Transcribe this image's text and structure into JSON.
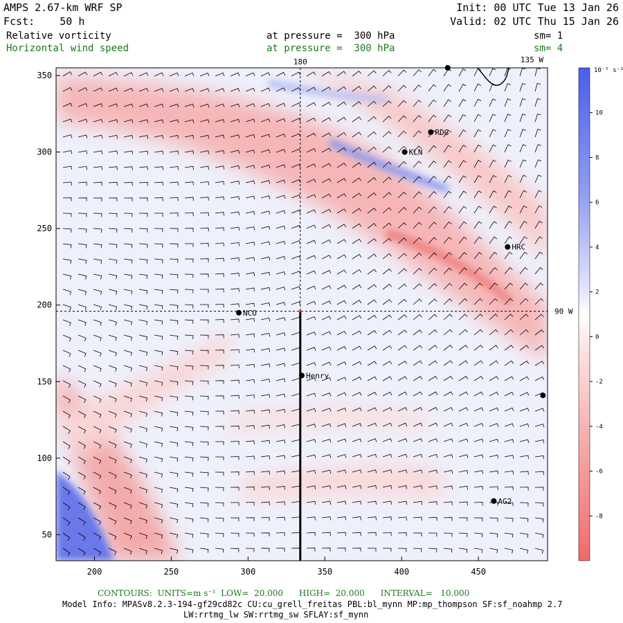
{
  "header": {
    "model": "AMPS 2.67-km WRF SP",
    "forecast": "Fcst:    50 h",
    "init": "Init: 00 UTC Tue 13 Jan 26",
    "valid": "Valid: 02 UTC Thu 15 Jan 26",
    "field1_name": "Relative vorticity",
    "field1_level": "at pressure =  300 hPa",
    "field1_sm": "sm= 1",
    "field2_name": "Horizontal wind speed",
    "field2_level": "at pressure =  300 hPa",
    "field2_sm": "sm= 4"
  },
  "map": {
    "x_ticks": [
      200,
      250,
      300,
      350,
      400,
      450
    ],
    "y_ticks": [
      50,
      100,
      150,
      200,
      250,
      300,
      350
    ],
    "x_range": [
      175,
      495
    ],
    "y_range": [
      33,
      355
    ],
    "meridian_label": "180",
    "corner_label": "135 W",
    "parallel_label": "90 W",
    "crosshair": {
      "x": 334,
      "y": 196
    },
    "section_line": {
      "x": 334,
      "y_from": 33,
      "y_to": 196
    },
    "stations": [
      {
        "name": "RDG",
        "x": 419,
        "y": 313
      },
      {
        "name": "KLN",
        "x": 402,
        "y": 300
      },
      {
        "name": "HRC",
        "x": 469,
        "y": 238
      },
      {
        "name": "NCO",
        "x": 294,
        "y": 195
      },
      {
        "name": "Henry",
        "x": 335,
        "y": 154
      },
      {
        "name": "AG2",
        "x": 460,
        "y": 72
      },
      {
        "name": "",
        "x": 430,
        "y": 355
      },
      {
        "name": "",
        "x": 492,
        "y": 141
      }
    ]
  },
  "colorbar": {
    "unit": "10⁻⁵ s⁻¹",
    "ticks": [
      10,
      8,
      6,
      4,
      2,
      0,
      -2,
      -4,
      -6,
      -8
    ],
    "colors": {
      "positive": "#4a5ee8",
      "negative": "#f06a6a",
      "zero": "#ffffff"
    }
  },
  "footer": {
    "contours": "CONTOURS:  UNITS=m s⁻¹  LOW=  20.000      HIGH=  20.000      INTERVAL=   10.000",
    "model_info": "Model Info: MPASv8.2.3-194-gf29cd82c CU:cu_grell_freitas PBL:bl_mynn MP:mp_thompson SF:sf_noahmp 2.7",
    "model_info2": "LW:rrtmg_lw SW:rrtmg_sw SFLAY:sf_mynn"
  }
}
